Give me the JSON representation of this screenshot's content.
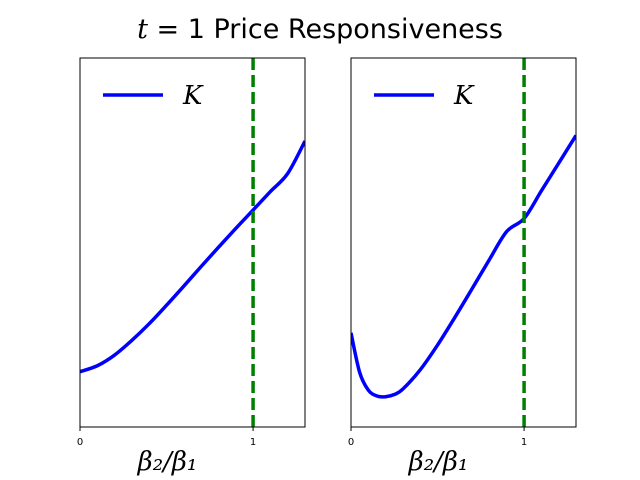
{
  "title": {
    "var": "t",
    "rest": " = 1 Price Responsiveness"
  },
  "chart_data": [
    {
      "type": "line",
      "xlabel": "β₂/β₁",
      "xlim": [
        0,
        1.3
      ],
      "ylim": [
        0,
        1
      ],
      "xticks": [
        0,
        1
      ],
      "xtick_labels": [
        "0",
        "1"
      ],
      "yticks_shown": false,
      "legend": {
        "placement": "top-left",
        "entries": [
          "K"
        ]
      },
      "reference_line": {
        "x": 1,
        "style": "dashed",
        "color": "#008000"
      },
      "series": [
        {
          "name": "K",
          "color": "#0000ff",
          "x": [
            0,
            0.1,
            0.2,
            0.3,
            0.4,
            0.5,
            0.6,
            0.7,
            0.8,
            0.9,
            1.0,
            1.1,
            1.2,
            1.3
          ],
          "y": [
            0.15,
            0.166,
            0.195,
            0.235,
            0.28,
            0.33,
            0.382,
            0.435,
            0.487,
            0.538,
            0.588,
            0.638,
            0.687,
            0.775
          ]
        }
      ]
    },
    {
      "type": "line",
      "xlabel": "β₂/β₁",
      "xlim": [
        0,
        1.3
      ],
      "ylim": [
        0,
        1
      ],
      "xticks": [
        0,
        1
      ],
      "xtick_labels": [
        "0",
        "1"
      ],
      "yticks_shown": false,
      "legend": {
        "placement": "top-left",
        "entries": [
          "K"
        ]
      },
      "reference_line": {
        "x": 1,
        "style": "dashed",
        "color": "#008000"
      },
      "series": [
        {
          "name": "K",
          "color": "#0000ff",
          "x": [
            0,
            0.05,
            0.1,
            0.15,
            0.2,
            0.25,
            0.3,
            0.4,
            0.5,
            0.6,
            0.7,
            0.8,
            0.9,
            1.0,
            1.1,
            1.2,
            1.3
          ],
          "y": [
            0.255,
            0.148,
            0.1,
            0.084,
            0.082,
            0.088,
            0.103,
            0.155,
            0.222,
            0.297,
            0.375,
            0.454,
            0.53,
            0.565,
            0.64,
            0.715,
            0.79
          ]
        }
      ]
    }
  ]
}
